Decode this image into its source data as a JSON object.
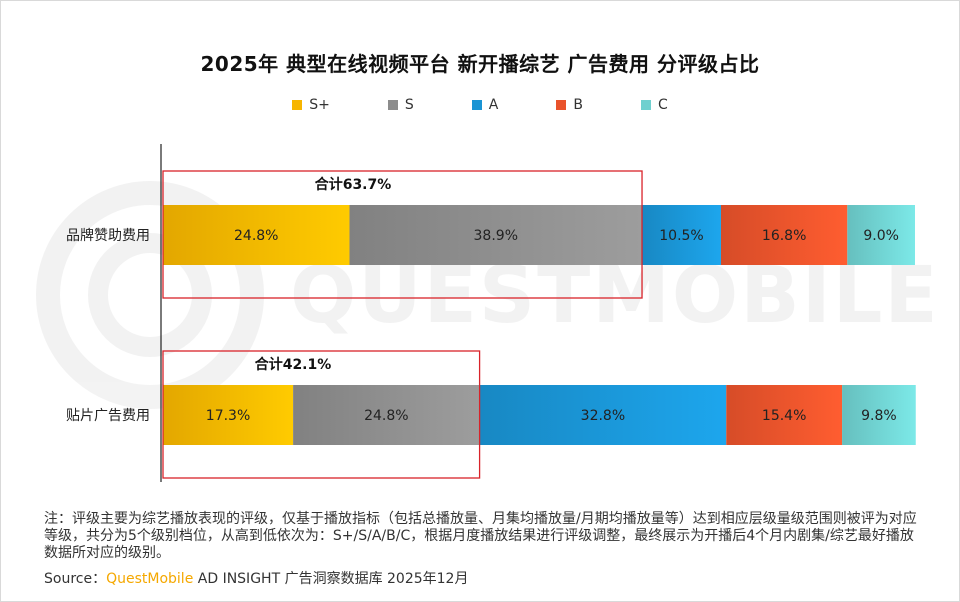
{
  "page": {
    "title": "2025年 典型在线视频平台 新开播综艺 广告费用 分评级占比",
    "watermark": "QUESTMOBILE",
    "note": "注：评级主要为综艺播放表现的评级，仅基于播放指标（包括总播放量、月集均播放量/月期均播放量等）达到相应层级量级范围则被评为对应等级，共分为5个级别档位，从高到低依次为：S+/S/A/B/C，根据月度播放结果进行评级调整，最终展示为开播后4个月内剧集/综艺最好播放数据所对应的级别。",
    "source_prefix": "Source：",
    "source_brand": "QuestMobile",
    "source_suffix": " AD INSIGHT 广告洞察数据库 2025年12月"
  },
  "chart_data": {
    "type": "bar",
    "orientation": "horizontal",
    "stacked": true,
    "percent": true,
    "title": "2025年 典型在线视频平台 新开播综艺 广告费用 分评级占比",
    "categories": [
      "品牌赞助费用",
      "贴片广告费用"
    ],
    "series": [
      {
        "name": "S+",
        "color": "#f7b500",
        "values": [
          24.8,
          17.3
        ]
      },
      {
        "name": "S",
        "color": "#8c8c8c",
        "values": [
          38.9,
          24.8
        ]
      },
      {
        "name": "A",
        "color": "#1a94d4",
        "values": [
          10.5,
          32.8
        ]
      },
      {
        "name": "B",
        "color": "#e9532b",
        "values": [
          16.8,
          15.4
        ]
      },
      {
        "name": "C",
        "color": "#6fd0cf",
        "values": [
          9.0,
          9.8
        ]
      }
    ],
    "value_labels": [
      [
        "24.8%",
        "17.3%"
      ],
      [
        "38.9%",
        "24.8%"
      ],
      [
        "10.5%",
        "32.8%"
      ],
      [
        "16.8%",
        "15.4%"
      ],
      [
        "9.0%",
        "9.8%"
      ]
    ],
    "annotations": [
      {
        "category": "品牌赞助费用",
        "text": "合计63.7%",
        "value": 63.7
      },
      {
        "category": "贴片广告费用",
        "text": "合计42.1%",
        "value": 42.1
      }
    ],
    "legend": "top-center",
    "xlim": [
      0,
      100
    ]
  }
}
